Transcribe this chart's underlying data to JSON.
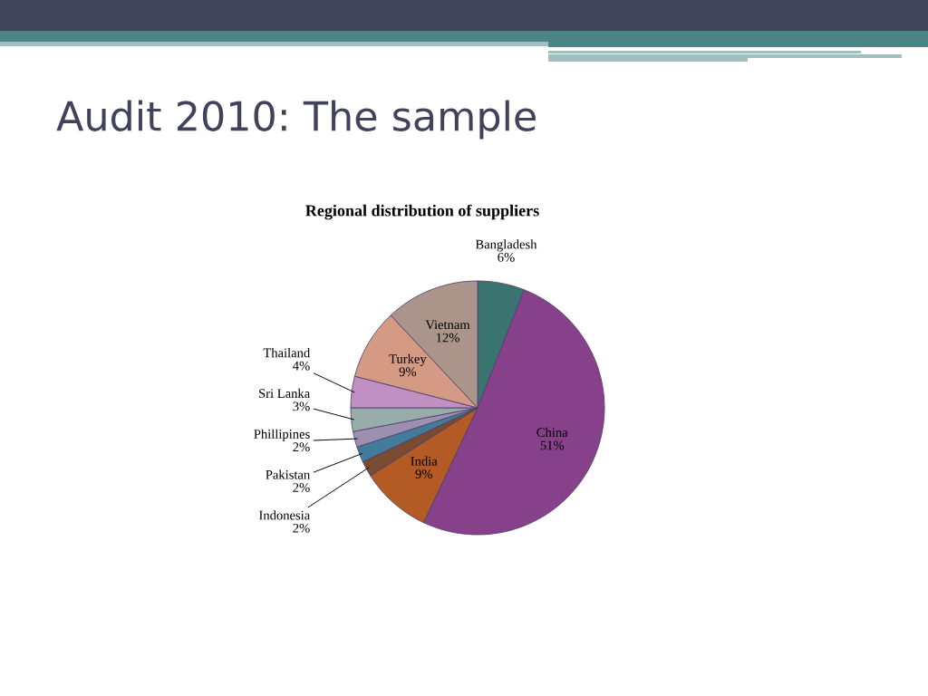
{
  "chart_data": {
    "type": "pie",
    "title": "Audit 2010: The sample",
    "subtitle": "Regional distribution of suppliers",
    "categories": [
      "Bangladesh",
      "China",
      "India",
      "Indonesia",
      "Pakistan",
      "Phillipines",
      "Sri Lanka",
      "Thailand",
      "Turkey",
      "Vietnam"
    ],
    "values": [
      6,
      51,
      9,
      2,
      2,
      2,
      3,
      4,
      9,
      12
    ],
    "value_labels": [
      "6%",
      "51%",
      "9%",
      "2%",
      "2%",
      "2%",
      "3%",
      "4%",
      "9%",
      "12%"
    ],
    "colors": [
      "#3b7371",
      "#86418a",
      "#b35a25",
      "#7b4b31",
      "#437b9b",
      "#9c8fb0",
      "#98ada9",
      "#c08fc3",
      "#d49a83",
      "#ab958b"
    ]
  }
}
